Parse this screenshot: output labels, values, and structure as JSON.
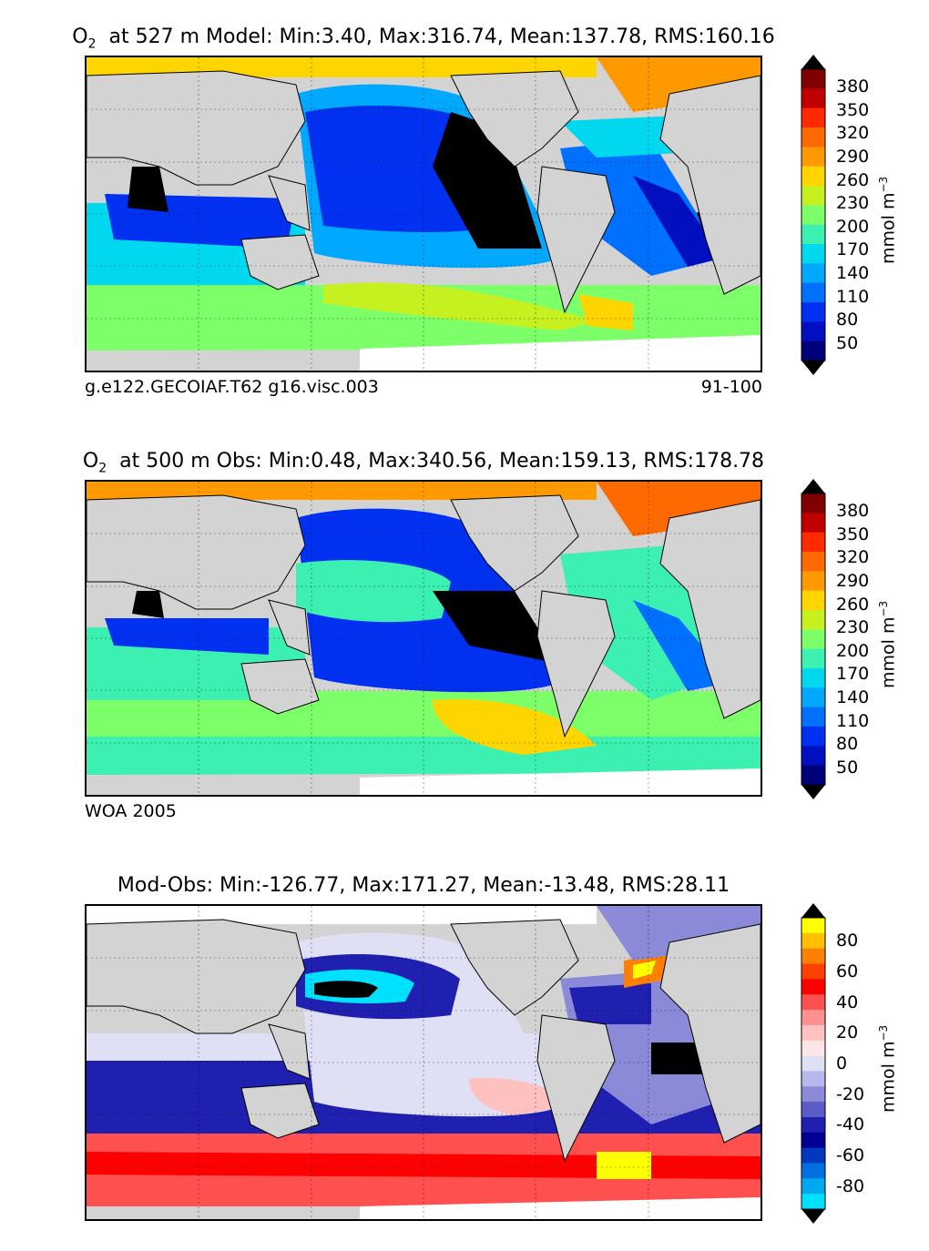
{
  "panels": [
    {
      "title_pre": "O",
      "title_sub": "2",
      "title_post": "at 527 m Model: Min:3.40, Max:316.74, Mean:137.78, RMS:160.16",
      "left_label": "g.e122.GECOIAF.T62 g16.visc.003",
      "right_label": "91-100",
      "units": "mmol m",
      "units_sup": "−3",
      "colorbar": {
        "ticks": [
          "380",
          "350",
          "320",
          "290",
          "260",
          "230",
          "200",
          "170",
          "140",
          "110",
          "80",
          "50"
        ],
        "colors": [
          "#800000",
          "#c00000",
          "#ff2a00",
          "#ff6a00",
          "#ff9900",
          "#ffd500",
          "#c6f020",
          "#7dff6a",
          "#3bf0b0",
          "#00d8f0",
          "#00a8ff",
          "#0070ff",
          "#0030f0",
          "#0010c0",
          "#00007a"
        ],
        "over_color": "#000000",
        "under_color": "#000000"
      }
    },
    {
      "title_pre": "O",
      "title_sub": "2",
      "title_post": "at 500 m Obs: Min:0.48, Max:340.56, Mean:159.13, RMS:178.78",
      "left_label": "WOA 2005",
      "right_label": "",
      "units": "mmol m",
      "units_sup": "−3",
      "colorbar": {
        "ticks": [
          "380",
          "350",
          "320",
          "290",
          "260",
          "230",
          "200",
          "170",
          "140",
          "110",
          "80",
          "50"
        ],
        "colors": [
          "#800000",
          "#c00000",
          "#ff2a00",
          "#ff6a00",
          "#ff9900",
          "#ffd500",
          "#c6f020",
          "#7dff6a",
          "#3bf0b0",
          "#00d8f0",
          "#00a8ff",
          "#0070ff",
          "#0030f0",
          "#0010c0",
          "#00007a"
        ],
        "over_color": "#000000",
        "under_color": "#000000"
      }
    },
    {
      "title_pre": "",
      "title_sub": "",
      "title_post": "Mod-Obs: Min:-126.77, Max:171.27, Mean:-13.48, RMS:28.11",
      "left_label": "",
      "right_label": "",
      "units": "mmol m",
      "units_sup": "−3",
      "colorbar": {
        "ticks": [
          "80",
          "60",
          "40",
          "20",
          "0",
          "-20",
          "-40",
          "-60",
          "-80"
        ],
        "colors": [
          "#ffff00",
          "#ffc000",
          "#ff8000",
          "#ff4000",
          "#ff0000",
          "#ff5050",
          "#ff9090",
          "#ffc0c0",
          "#ffe6e6",
          "#e0e0f5",
          "#b8b8ec",
          "#8a8ad8",
          "#5c5cc8",
          "#2020b0",
          "#000090",
          "#0038c0",
          "#0070e0",
          "#00a8f0",
          "#00e0ff"
        ],
        "over_color": "#000000",
        "under_color": "#000000"
      }
    }
  ]
}
